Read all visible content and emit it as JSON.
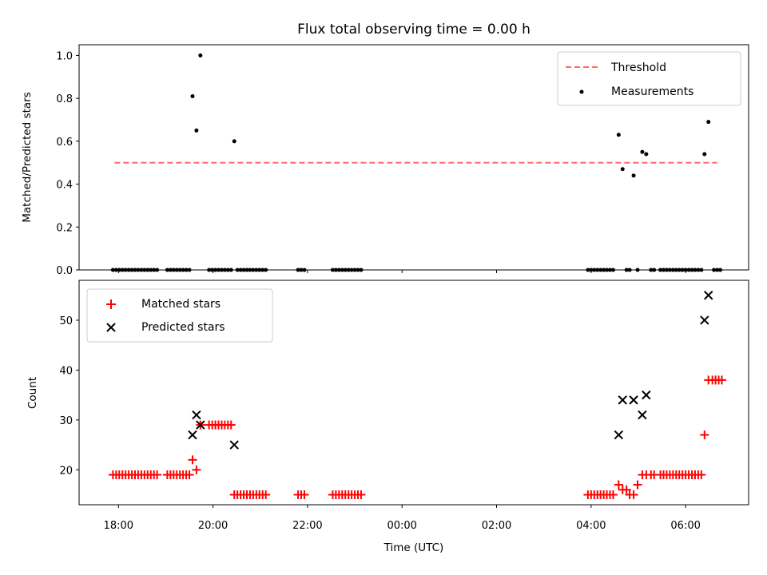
{
  "title": "Flux total observing time = 0.00 h",
  "chart_data": [
    {
      "type": "scatter",
      "panel": "top",
      "ylabel": "Matched/Predicted stars",
      "ylim": [
        0,
        1.05
      ],
      "yticks": [
        0.0,
        0.2,
        0.4,
        0.6,
        0.8,
        1.0
      ],
      "ytick_labels": [
        "0.0",
        "0.2",
        "0.4",
        "0.6",
        "0.8",
        "1.0"
      ],
      "legend_position": "top-right",
      "threshold": {
        "name": "Threshold",
        "value": 0.5,
        "x_start": "17:55",
        "x_end": "06:40",
        "color": "#ff6b6b",
        "style": "dashed"
      },
      "series": [
        {
          "name": "Measurements",
          "color": "#000000",
          "marker": "dot",
          "points": [
            [
              "17:53",
              0
            ],
            [
              "17:57",
              0
            ],
            [
              "18:01",
              0
            ],
            [
              "18:05",
              0
            ],
            [
              "18:09",
              0
            ],
            [
              "18:13",
              0
            ],
            [
              "18:17",
              0
            ],
            [
              "18:21",
              0
            ],
            [
              "18:25",
              0
            ],
            [
              "18:29",
              0
            ],
            [
              "18:33",
              0
            ],
            [
              "18:37",
              0
            ],
            [
              "18:41",
              0
            ],
            [
              "18:45",
              0
            ],
            [
              "18:49",
              0
            ],
            [
              "19:02",
              0
            ],
            [
              "19:06",
              0
            ],
            [
              "19:10",
              0
            ],
            [
              "19:14",
              0
            ],
            [
              "19:18",
              0
            ],
            [
              "19:22",
              0
            ],
            [
              "19:26",
              0
            ],
            [
              "19:30",
              0
            ],
            [
              "19:34",
              0.81
            ],
            [
              "19:39",
              0.65
            ],
            [
              "19:44",
              1.0
            ],
            [
              "19:55",
              0
            ],
            [
              "19:59",
              0
            ],
            [
              "20:03",
              0
            ],
            [
              "20:07",
              0
            ],
            [
              "20:11",
              0
            ],
            [
              "20:15",
              0
            ],
            [
              "20:19",
              0
            ],
            [
              "20:23",
              0
            ],
            [
              "20:27",
              0.6
            ],
            [
              "20:31",
              0
            ],
            [
              "20:35",
              0
            ],
            [
              "20:39",
              0
            ],
            [
              "20:43",
              0
            ],
            [
              "20:47",
              0
            ],
            [
              "20:51",
              0
            ],
            [
              "20:55",
              0
            ],
            [
              "20:59",
              0
            ],
            [
              "21:03",
              0
            ],
            [
              "21:07",
              0
            ],
            [
              "21:48",
              0
            ],
            [
              "21:52",
              0
            ],
            [
              "21:56",
              0
            ],
            [
              "22:32",
              0
            ],
            [
              "22:36",
              0
            ],
            [
              "22:40",
              0
            ],
            [
              "22:44",
              0
            ],
            [
              "22:48",
              0
            ],
            [
              "22:52",
              0
            ],
            [
              "22:56",
              0
            ],
            [
              "23:00",
              0
            ],
            [
              "23:04",
              0
            ],
            [
              "23:08",
              0
            ],
            [
              "03:56",
              0
            ],
            [
              "04:00",
              0
            ],
            [
              "04:04",
              0
            ],
            [
              "04:08",
              0
            ],
            [
              "04:12",
              0
            ],
            [
              "04:16",
              0
            ],
            [
              "04:20",
              0
            ],
            [
              "04:24",
              0
            ],
            [
              "04:28",
              0
            ],
            [
              "04:35",
              0.63
            ],
            [
              "04:40",
              0.47
            ],
            [
              "04:45",
              0
            ],
            [
              "04:49",
              0
            ],
            [
              "04:54",
              0.44
            ],
            [
              "04:59",
              0
            ],
            [
              "05:05",
              0.55
            ],
            [
              "05:10",
              0.54
            ],
            [
              "05:16",
              0
            ],
            [
              "05:20",
              0
            ],
            [
              "05:28",
              0
            ],
            [
              "05:32",
              0
            ],
            [
              "05:36",
              0
            ],
            [
              "05:40",
              0
            ],
            [
              "05:44",
              0
            ],
            [
              "05:48",
              0
            ],
            [
              "05:52",
              0
            ],
            [
              "05:56",
              0
            ],
            [
              "06:00",
              0
            ],
            [
              "06:04",
              0
            ],
            [
              "06:08",
              0
            ],
            [
              "06:12",
              0
            ],
            [
              "06:16",
              0
            ],
            [
              "06:20",
              0
            ],
            [
              "06:24",
              0.54
            ],
            [
              "06:29",
              0.69
            ],
            [
              "06:36",
              0
            ],
            [
              "06:40",
              0
            ],
            [
              "06:44",
              0
            ]
          ]
        }
      ]
    },
    {
      "type": "scatter",
      "panel": "bottom",
      "xlabel": "Time (UTC)",
      "ylabel": "Count",
      "ylim": [
        13,
        58
      ],
      "yticks": [
        20,
        30,
        40,
        50
      ],
      "ytick_labels": [
        "20",
        "30",
        "40",
        "50"
      ],
      "xticks": [
        "18:00",
        "20:00",
        "22:00",
        "00:00",
        "02:00",
        "04:00",
        "06:00"
      ],
      "xtick_labels": [
        "18:00",
        "20:00",
        "22:00",
        "00:00",
        "02:00",
        "04:00",
        "06:00"
      ],
      "xlim": [
        "17:10",
        "07:20"
      ],
      "legend_position": "top-left",
      "series": [
        {
          "name": "Matched stars",
          "color": "#ff0000",
          "marker": "plus",
          "points": [
            [
              "17:53",
              19
            ],
            [
              "17:57",
              19
            ],
            [
              "18:01",
              19
            ],
            [
              "18:05",
              19
            ],
            [
              "18:09",
              19
            ],
            [
              "18:13",
              19
            ],
            [
              "18:17",
              19
            ],
            [
              "18:21",
              19
            ],
            [
              "18:25",
              19
            ],
            [
              "18:29",
              19
            ],
            [
              "18:33",
              19
            ],
            [
              "18:37",
              19
            ],
            [
              "18:41",
              19
            ],
            [
              "18:45",
              19
            ],
            [
              "18:49",
              19
            ],
            [
              "19:02",
              19
            ],
            [
              "19:06",
              19
            ],
            [
              "19:10",
              19
            ],
            [
              "19:14",
              19
            ],
            [
              "19:18",
              19
            ],
            [
              "19:22",
              19
            ],
            [
              "19:26",
              19
            ],
            [
              "19:30",
              19
            ],
            [
              "19:34",
              22
            ],
            [
              "19:39",
              20
            ],
            [
              "19:44",
              29
            ],
            [
              "19:55",
              29
            ],
            [
              "19:59",
              29
            ],
            [
              "20:03",
              29
            ],
            [
              "20:07",
              29
            ],
            [
              "20:11",
              29
            ],
            [
              "20:15",
              29
            ],
            [
              "20:19",
              29
            ],
            [
              "20:23",
              29
            ],
            [
              "20:27",
              15
            ],
            [
              "20:31",
              15
            ],
            [
              "20:35",
              15
            ],
            [
              "20:39",
              15
            ],
            [
              "20:43",
              15
            ],
            [
              "20:47",
              15
            ],
            [
              "20:51",
              15
            ],
            [
              "20:55",
              15
            ],
            [
              "20:59",
              15
            ],
            [
              "21:03",
              15
            ],
            [
              "21:07",
              15
            ],
            [
              "21:48",
              15
            ],
            [
              "21:52",
              15
            ],
            [
              "21:56",
              15
            ],
            [
              "22:32",
              15
            ],
            [
              "22:36",
              15
            ],
            [
              "22:40",
              15
            ],
            [
              "22:44",
              15
            ],
            [
              "22:48",
              15
            ],
            [
              "22:52",
              15
            ],
            [
              "22:56",
              15
            ],
            [
              "23:00",
              15
            ],
            [
              "23:04",
              15
            ],
            [
              "23:08",
              15
            ],
            [
              "03:56",
              15
            ],
            [
              "04:00",
              15
            ],
            [
              "04:04",
              15
            ],
            [
              "04:08",
              15
            ],
            [
              "04:12",
              15
            ],
            [
              "04:16",
              15
            ],
            [
              "04:20",
              15
            ],
            [
              "04:24",
              15
            ],
            [
              "04:28",
              15
            ],
            [
              "04:35",
              17
            ],
            [
              "04:40",
              16
            ],
            [
              "04:45",
              16
            ],
            [
              "04:49",
              15
            ],
            [
              "04:54",
              15
            ],
            [
              "04:59",
              17
            ],
            [
              "05:05",
              19
            ],
            [
              "05:10",
              19
            ],
            [
              "05:16",
              19
            ],
            [
              "05:20",
              19
            ],
            [
              "05:28",
              19
            ],
            [
              "05:32",
              19
            ],
            [
              "05:36",
              19
            ],
            [
              "05:40",
              19
            ],
            [
              "05:44",
              19
            ],
            [
              "05:48",
              19
            ],
            [
              "05:52",
              19
            ],
            [
              "05:56",
              19
            ],
            [
              "06:00",
              19
            ],
            [
              "06:04",
              19
            ],
            [
              "06:08",
              19
            ],
            [
              "06:12",
              19
            ],
            [
              "06:16",
              19
            ],
            [
              "06:20",
              19
            ],
            [
              "06:24",
              27
            ],
            [
              "06:29",
              38
            ],
            [
              "06:34",
              38
            ],
            [
              "06:38",
              38
            ],
            [
              "06:42",
              38
            ],
            [
              "06:46",
              38
            ]
          ]
        },
        {
          "name": "Predicted stars",
          "color": "#000000",
          "marker": "x",
          "points": [
            [
              "19:34",
              27
            ],
            [
              "19:39",
              31
            ],
            [
              "19:44",
              29
            ],
            [
              "20:27",
              25
            ],
            [
              "04:35",
              27
            ],
            [
              "04:40",
              34
            ],
            [
              "04:54",
              34
            ],
            [
              "05:05",
              31
            ],
            [
              "05:10",
              35
            ],
            [
              "06:24",
              50
            ],
            [
              "06:29",
              55
            ]
          ]
        }
      ]
    }
  ]
}
